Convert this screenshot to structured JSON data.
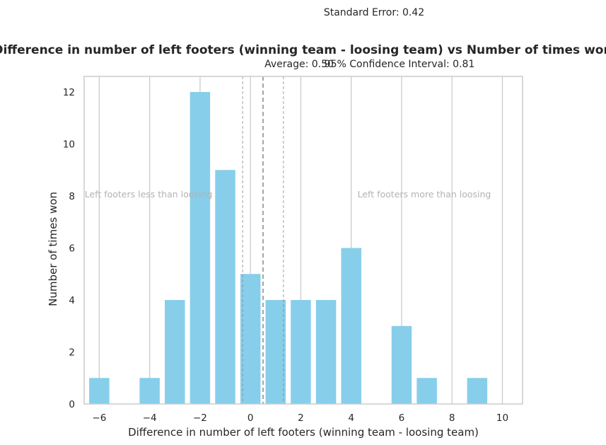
{
  "chart_data": {
    "type": "bar",
    "title": "Difference in number of left footers (winning team - loosing team) vs Number of times won",
    "xlabel": "Difference in number of left footers (winning team - loosing team)",
    "ylabel": "Number of times won",
    "x": [
      -6,
      -4,
      -3,
      -2,
      -1,
      0,
      1,
      2,
      3,
      4,
      6,
      7,
      9
    ],
    "values": [
      1,
      1,
      4,
      12,
      9,
      5,
      4,
      4,
      4,
      6,
      3,
      1,
      1
    ],
    "xlim": [
      -6.6,
      10.8
    ],
    "ylim": [
      0,
      12.6
    ],
    "xticks": [
      -6,
      -4,
      -2,
      0,
      2,
      4,
      6,
      8,
      10
    ],
    "xtick_labels": [
      "−6",
      "−4",
      "−2",
      "0",
      "2",
      "4",
      "6",
      "8",
      "10"
    ],
    "yticks": [
      0,
      2,
      4,
      6,
      8,
      10,
      12
    ],
    "ytick_labels": [
      "0",
      "2",
      "4",
      "6",
      "8",
      "10",
      "12"
    ],
    "grid": "x",
    "mean": 0.5,
    "ci_lower": -0.31,
    "ci_upper": 1.31,
    "annotations": {
      "standard_error": "Standard Error: 0.42",
      "average": "Average: 0.50",
      "confidence_interval": "95% Confidence Interval: 0.81",
      "left_region": "Left footers less than loosing",
      "right_region": "Left footers more than loosing"
    },
    "colors": {
      "bar": "#87ceeb",
      "grid": "#cccccc",
      "axis_frame": "#cccccc",
      "reference_line": "#888888",
      "region_text": "#b3b3b3",
      "text": "#262626"
    }
  }
}
